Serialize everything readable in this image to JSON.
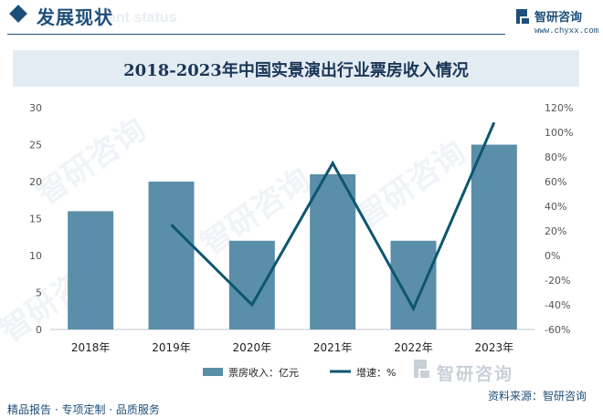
{
  "header": {
    "title": "发展现状",
    "subtitle": "ent status"
  },
  "logo": {
    "name": "智研咨询",
    "url": "www.chyxx.com"
  },
  "colors": {
    "bar": "#5b8ea8",
    "line": "#0d5670",
    "brand": "#1e4f7a"
  },
  "chart_data": {
    "type": "bar",
    "title": "2018-2023年中国实景演出行业票房收入情况",
    "categories": [
      "2018年",
      "2019年",
      "2020年",
      "2021年",
      "2022年",
      "2023年"
    ],
    "series": [
      {
        "name": "票房收入：亿元",
        "type": "bar",
        "axis": "left",
        "values": [
          16,
          20,
          12,
          21,
          12,
          25
        ]
      },
      {
        "name": "增速：%",
        "type": "line",
        "axis": "right",
        "values": [
          null,
          25,
          -40,
          75,
          -43,
          108
        ]
      }
    ],
    "y_left": {
      "min": 0,
      "max": 30,
      "ticks": [
        "0",
        "5",
        "10",
        "15",
        "20",
        "25",
        "30"
      ]
    },
    "y_right": {
      "min": -60,
      "max": 120,
      "ticks": [
        "-60%",
        "-40%",
        "-20%",
        "0%",
        "20%",
        "40%",
        "60%",
        "80%",
        "100%",
        "120%"
      ]
    },
    "legend_position": "bottom"
  },
  "footer": {
    "left": "精品报告 · 专项定制 · 品质服务",
    "source": "资料来源：智研咨询",
    "brand": "智研咨询"
  },
  "watermark": "智研咨询"
}
